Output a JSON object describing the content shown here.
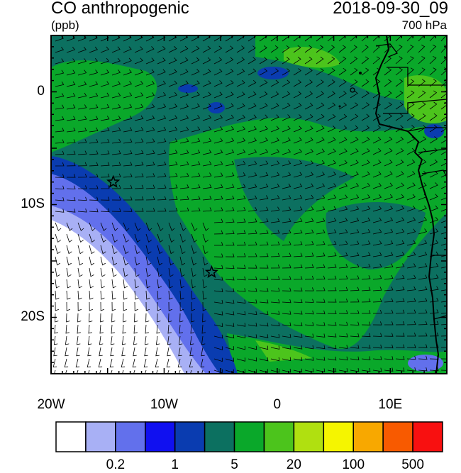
{
  "header": {
    "title": "CO anthropogenic",
    "units": "(ppb)",
    "datetime": "2018-09-30_09",
    "level": "700 hPa"
  },
  "map": {
    "lon_range": [
      -20,
      15
    ],
    "lat_range": [
      -25,
      5
    ],
    "x_ticks": [
      {
        "value": -20,
        "label": "20W"
      },
      {
        "value": -10,
        "label": "10W"
      },
      {
        "value": 0,
        "label": "0"
      },
      {
        "value": 10,
        "label": "10E"
      }
    ],
    "y_ticks": [
      {
        "value": 0,
        "label": "0"
      },
      {
        "value": -10,
        "label": "10S"
      },
      {
        "value": -20,
        "label": "20S"
      }
    ],
    "markers": [
      {
        "name": "star-marker-1",
        "lon": -14.5,
        "lat": -8.0
      },
      {
        "name": "star-marker-2",
        "lon": -5.8,
        "lat": -16.0
      }
    ]
  },
  "colorbar": {
    "colors": [
      "#ffffff",
      "#a8b0f5",
      "#6270ec",
      "#1010f0",
      "#0a3cb0",
      "#0c7060",
      "#0aa82a",
      "#4cc41c",
      "#b0e010",
      "#f5f500",
      "#f8a800",
      "#f85a00",
      "#f81010"
    ],
    "labels": [
      {
        "after_box": 2,
        "text": "0.2"
      },
      {
        "after_box": 4,
        "text": "1"
      },
      {
        "after_box": 6,
        "text": "5"
      },
      {
        "after_box": 8,
        "text": "20"
      },
      {
        "after_box": 10,
        "text": "100"
      },
      {
        "after_box": 12,
        "text": "500"
      }
    ]
  }
}
